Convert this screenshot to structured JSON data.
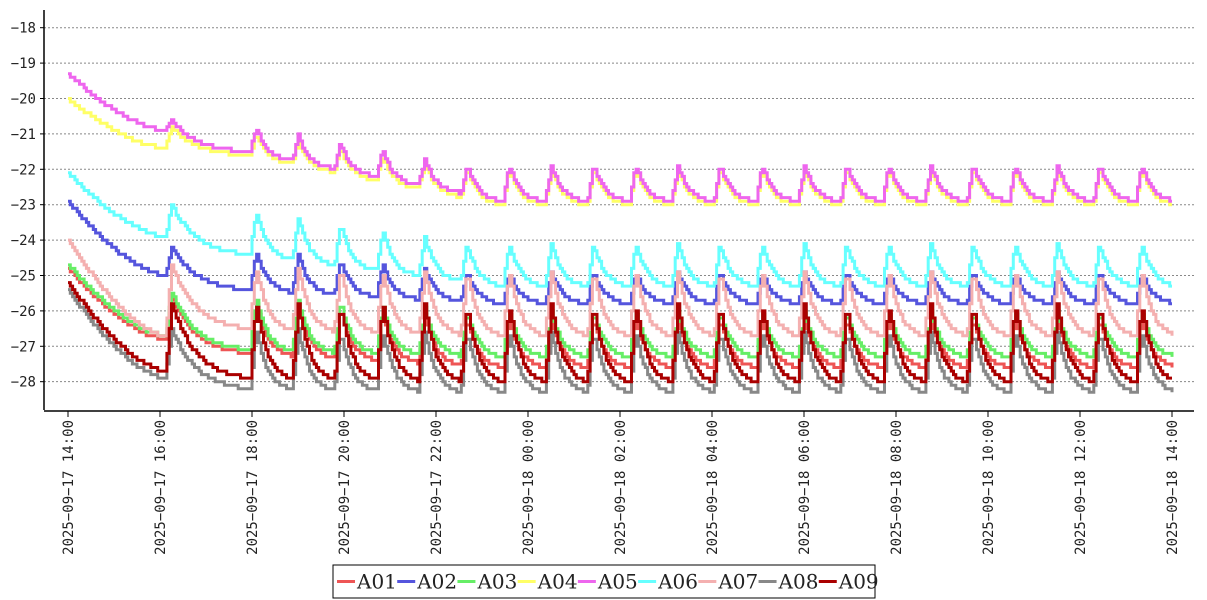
{
  "chart_data": {
    "type": "line",
    "title": "",
    "xlabel": "",
    "ylabel": "",
    "ylim": [
      -28.8,
      -17.5
    ],
    "yticks": [
      -18,
      -19,
      -20,
      -21,
      -22,
      -23,
      -24,
      -25,
      -26,
      -27,
      -28
    ],
    "grid": "horizontal-dashed",
    "legend_position": "bottom-center",
    "xrange": [
      "2025-09-17 14:00",
      "2025-09-18 14:00"
    ],
    "xtick_labels": [
      "2025-09-17 14:00",
      "2025-09-17 16:00",
      "2025-09-17 18:00",
      "2025-09-17 20:00",
      "2025-09-17 22:00",
      "2025-09-18 00:00",
      "2025-09-18 02:00",
      "2025-09-18 04:00",
      "2025-09-18 06:00",
      "2025-09-18 08:00",
      "2025-09-18 10:00",
      "2025-09-18 12:00",
      "2025-09-18 14:00"
    ],
    "cycle_peak_times": [
      "2025-09-17 16:15",
      "2025-09-17 18:05",
      "2025-09-17 19:00",
      "2025-09-17 19:55",
      "2025-09-17 20:50",
      "2025-09-17 21:45",
      "2025-09-17 22:40",
      "2025-09-17 23:35",
      "2025-09-18 00:30",
      "2025-09-18 01:25",
      "2025-09-18 02:20",
      "2025-09-18 03:15",
      "2025-09-18 04:10",
      "2025-09-18 05:05",
      "2025-09-18 06:00",
      "2025-09-18 06:55",
      "2025-09-18 07:50",
      "2025-09-18 08:45",
      "2025-09-18 09:40",
      "2025-09-18 10:35",
      "2025-09-18 11:30",
      "2025-09-18 12:25",
      "2025-09-18 13:20"
    ],
    "series": [
      {
        "name": "A01",
        "color": "#ee5555",
        "start": -24.8,
        "first_min": -26.8,
        "first_peak": -25.6,
        "first_trough": -27.2,
        "peak": -26.2,
        "trough": -27.6,
        "end": -27.6
      },
      {
        "name": "A02",
        "color": "#5555dd",
        "start": -22.9,
        "first_min": -25.0,
        "first_peak": -24.2,
        "first_trough": -25.4,
        "peak": -24.9,
        "trough": -25.8,
        "end": -25.8
      },
      {
        "name": "A03",
        "color": "#66ee66",
        "start": -24.7,
        "first_min": -26.7,
        "first_peak": -25.5,
        "first_trough": -27.1,
        "peak": -26.0,
        "trough": -27.3,
        "end": -27.3
      },
      {
        "name": "A04",
        "color": "#ffff66",
        "start": -20.0,
        "first_min": -21.4,
        "first_peak": -20.8,
        "first_trough": -21.6,
        "peak": -22.0,
        "trough": -23.0,
        "end": -23.0
      },
      {
        "name": "A05",
        "color": "#ee66ee",
        "start": -19.3,
        "first_min": -20.9,
        "first_peak": -20.6,
        "first_trough": -21.5,
        "peak": -21.9,
        "trough": -22.9,
        "end": -22.9
      },
      {
        "name": "A06",
        "color": "#66ffff",
        "start": -22.1,
        "first_min": -23.9,
        "first_peak": -23.0,
        "first_trough": -24.4,
        "peak": -24.1,
        "trough": -25.3,
        "end": -25.3
      },
      {
        "name": "A07",
        "color": "#f4b0b0",
        "start": -24.0,
        "first_min": -26.7,
        "first_peak": -24.7,
        "first_trough": -26.5,
        "peak": -24.9,
        "trough": -26.7,
        "end": -26.7
      },
      {
        "name": "A08",
        "color": "#888888",
        "start": -25.4,
        "first_min": -27.9,
        "first_peak": -26.5,
        "first_trough": -28.2,
        "peak": -26.6,
        "trough": -28.3,
        "end": -28.3
      },
      {
        "name": "A09",
        "color": "#aa0000",
        "start": -25.2,
        "first_min": -27.7,
        "first_peak": -25.8,
        "first_trough": -27.9,
        "peak": -25.8,
        "trough": -28.0,
        "end": -28.0
      }
    ]
  }
}
